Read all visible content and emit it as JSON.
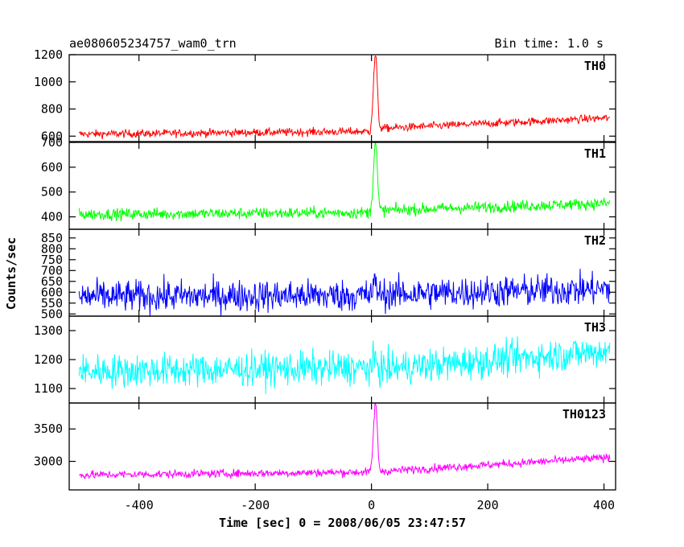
{
  "chart_data": {
    "type": "line",
    "title": "ae080605234757_wam0_trn",
    "bin_time_label": "Bin time: 1.0 s",
    "xlabel": "Time [sec] 0 = 2008/06/05 23:47:57",
    "ylabel": "Counts/sec",
    "xlim": [
      -520,
      420
    ],
    "xticks": [
      -400,
      -200,
      0,
      200,
      400
    ],
    "x_range": [
      -503,
      410
    ],
    "burst_time": 7,
    "panels": [
      {
        "name": "TH0",
        "color": "#ff0000",
        "ylim": [
          560,
          1200
        ],
        "yticks": [
          600,
          800,
          1000,
          1200
        ],
        "baseline_start": 615,
        "baseline_end": 735,
        "post_level": 655,
        "noise_amp": 28,
        "peak": 1200
      },
      {
        "name": "TH1",
        "color": "#00ff00",
        "ylim": [
          350,
          700
        ],
        "yticks": [
          400,
          500,
          600,
          700
        ],
        "baseline_start": 410,
        "baseline_end": 455,
        "post_level": 425,
        "noise_amp": 22,
        "peak": 700
      },
      {
        "name": "TH2",
        "color": "#0000ff",
        "ylim": [
          490,
          890
        ],
        "yticks": [
          500,
          550,
          600,
          650,
          700,
          750,
          800,
          850
        ],
        "baseline_start": 580,
        "baseline_end": 615,
        "post_level": 590,
        "noise_amp": 70,
        "peak": 640
      },
      {
        "name": "TH3",
        "color": "#00ffff",
        "ylim": [
          1050,
          1350
        ],
        "yticks": [
          1100,
          1200,
          1300
        ],
        "baseline_start": 1160,
        "baseline_end": 1230,
        "post_level": 1165,
        "noise_amp": 55,
        "peak": 1200
      },
      {
        "name": "TH0123",
        "color": "#ff00ff",
        "ylim": [
          2560,
          3900
        ],
        "yticks": [
          3000,
          3500
        ],
        "baseline_start": 2790,
        "baseline_end": 3060,
        "post_level": 2840,
        "noise_amp": 60,
        "peak": 3900
      }
    ]
  }
}
